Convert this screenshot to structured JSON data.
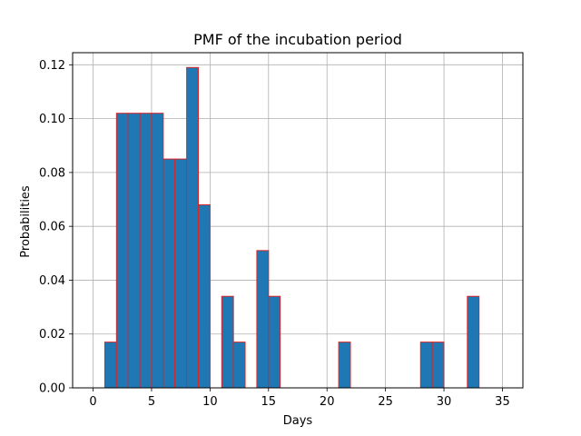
{
  "chart_data": {
    "type": "bar",
    "title": "PMF of the incubation period",
    "xlabel": "Days",
    "ylabel": "Probabilities",
    "xlim": [
      -1.75,
      36.75
    ],
    "ylim": [
      0,
      0.1245
    ],
    "xticks": [
      0,
      5,
      10,
      15,
      20,
      25,
      30,
      35
    ],
    "yticks": [
      0.0,
      0.02,
      0.04,
      0.06,
      0.08,
      0.1,
      0.12
    ],
    "xtick_labels": [
      "0",
      "5",
      "10",
      "15",
      "20",
      "25",
      "30",
      "35"
    ],
    "ytick_labels": [
      "0.00",
      "0.02",
      "0.04",
      "0.06",
      "0.08",
      "0.10",
      "0.12"
    ],
    "bar_width": 1,
    "grid": true,
    "bar_color": "#1f77b4",
    "bar_edge_color": "#d62728",
    "x": [
      1,
      2,
      3,
      4,
      5,
      6,
      7,
      8,
      9,
      11,
      12,
      14,
      15,
      21,
      28,
      29,
      32
    ],
    "values": [
      0.017,
      0.102,
      0.102,
      0.102,
      0.102,
      0.085,
      0.085,
      0.119,
      0.068,
      0.034,
      0.017,
      0.051,
      0.034,
      0.017,
      0.017,
      0.017,
      0.034
    ]
  }
}
